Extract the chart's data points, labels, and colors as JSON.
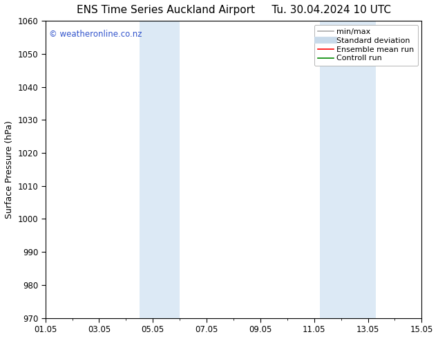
{
  "title": "ENS Time Series Auckland Airport",
  "title2": "Tu. 30.04.2024 10 UTC",
  "ylabel": "Surface Pressure (hPa)",
  "ylim": [
    970,
    1060
  ],
  "yticks": [
    970,
    980,
    990,
    1000,
    1010,
    1020,
    1030,
    1040,
    1050,
    1060
  ],
  "xlim": [
    0,
    14
  ],
  "xtick_labels": [
    "01.05",
    "03.05",
    "05.05",
    "07.05",
    "09.05",
    "11.05",
    "13.05",
    "15.05"
  ],
  "xtick_positions": [
    0,
    2,
    4,
    6,
    8,
    10,
    12,
    14
  ],
  "shade_bands": [
    {
      "xstart": 3.5,
      "xend": 5.0
    },
    {
      "xstart": 10.2,
      "xend": 12.3
    }
  ],
  "shade_color": "#dce9f5",
  "watermark_text": "© weatheronline.co.nz",
  "watermark_color": "#3355cc",
  "legend_items": [
    {
      "label": "min/max",
      "color": "#aaaaaa",
      "lw": 1.2,
      "style": "solid"
    },
    {
      "label": "Standard deviation",
      "color": "#c8daea",
      "lw": 7,
      "style": "solid"
    },
    {
      "label": "Ensemble mean run",
      "color": "#ff0000",
      "lw": 1.2,
      "style": "solid"
    },
    {
      "label": "Controll run",
      "color": "#008800",
      "lw": 1.2,
      "style": "solid"
    }
  ],
  "bg_color": "#ffffff",
  "tick_fontsize": 8.5,
  "title_fontsize": 11,
  "ylabel_fontsize": 9,
  "watermark_fontsize": 8.5,
  "legend_fontsize": 8
}
